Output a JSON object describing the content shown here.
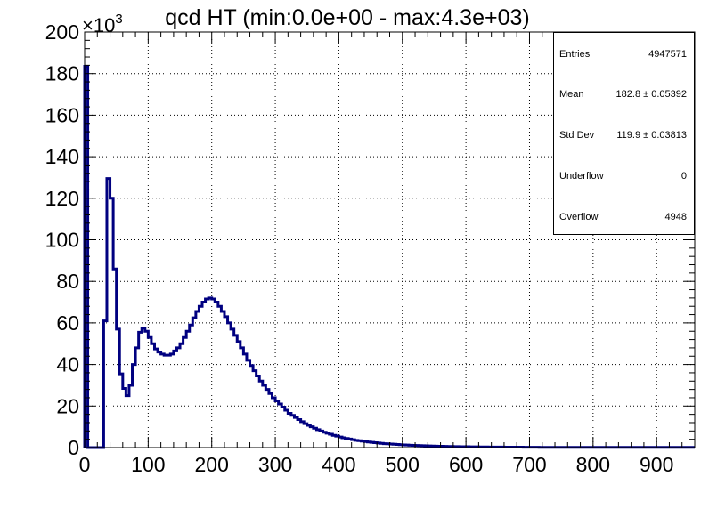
{
  "chart_data": {
    "type": "histogram-step",
    "title": "qcd HT (min:0.0e+00 - max:4.3e+03)",
    "y_multiplier": "×10",
    "y_multiplier_exp": "3",
    "xlim": [
      0,
      960
    ],
    "ylim": [
      0,
      200
    ],
    "x_ticks": [
      0,
      100,
      200,
      300,
      400,
      500,
      600,
      700,
      800,
      900
    ],
    "y_ticks": [
      0,
      20,
      40,
      60,
      80,
      100,
      120,
      140,
      160,
      180,
      200
    ],
    "grid": true,
    "line_color": "#000080",
    "bin_width": 5,
    "series": [
      {
        "values": [
          183.5,
          0,
          0,
          0,
          0,
          0,
          61,
          129.5,
          120,
          86,
          57,
          35.5,
          28.5,
          25,
          30,
          40,
          48,
          55.5,
          57.5,
          56,
          53,
          50,
          47.5,
          46,
          45,
          44.5,
          44.5,
          45,
          46.5,
          48,
          50,
          53,
          56,
          59,
          62.5,
          65.5,
          68,
          70,
          71.5,
          72,
          71.5,
          70,
          68,
          65.5,
          63,
          60,
          57,
          54,
          51,
          48,
          45,
          42,
          39.5,
          37,
          34.5,
          32,
          30,
          28,
          26,
          24,
          22.5,
          21,
          19.5,
          18,
          16.5,
          15.5,
          14.5,
          13.5,
          12.5,
          11.5,
          10.7,
          10,
          9.3,
          8.6,
          8,
          7.4,
          6.9,
          6.4,
          5.9,
          5.5,
          5.1,
          4.7,
          4.4,
          4.1,
          3.8,
          3.5,
          3.3,
          3.1,
          2.9,
          2.7,
          2.5,
          2.35,
          2.2,
          2.05,
          1.9,
          1.8,
          1.7,
          1.6,
          1.5,
          1.4,
          1.3,
          1.22,
          1.15,
          1.08,
          1.01,
          0.95,
          0.89,
          0.84,
          0.79,
          0.74,
          0.7,
          0.66,
          0.62,
          0.59,
          0.56,
          0.53,
          0.5,
          0.47,
          0.45,
          0.43,
          0.41,
          0.39,
          0.37,
          0.35,
          0.33,
          0.31,
          0.3,
          0.29,
          0.28,
          0.27,
          0.26,
          0.25,
          0.24,
          0.23,
          0.22,
          0.21,
          0.2,
          0.19,
          0.18,
          0.17,
          0.16,
          0.15,
          0.14,
          0.13,
          0.12,
          0.11,
          0.1,
          0.1,
          0.1,
          0.1,
          0.1,
          0.1,
          0.1,
          0.1,
          0.1,
          0.1,
          0.1,
          0.1,
          0.1,
          0.1,
          0.1,
          0.1,
          0.1,
          0.1,
          0.1,
          0.1,
          0.1,
          0.1,
          0.1,
          0.1,
          0.1,
          0.1,
          0.1,
          0.1,
          0.1,
          0.1,
          0.1,
          0.1,
          0.1,
          0.1,
          0.1,
          0.1,
          0.1,
          0.1,
          0.1,
          0.1,
          0.1,
          0.1,
          0.1,
          0.1,
          0.1,
          0.1,
          0.1
        ]
      }
    ]
  },
  "stats": {
    "entries_label": "Entries",
    "entries_value": "4947571",
    "mean_label": "Mean",
    "mean_value": "182.8 ± 0.05392",
    "stddev_label": "Std Dev",
    "stddev_value": "119.9 ± 0.03813",
    "underflow_label": "Underflow",
    "underflow_value": "0",
    "overflow_label": "Overflow",
    "overflow_value": "4948"
  }
}
